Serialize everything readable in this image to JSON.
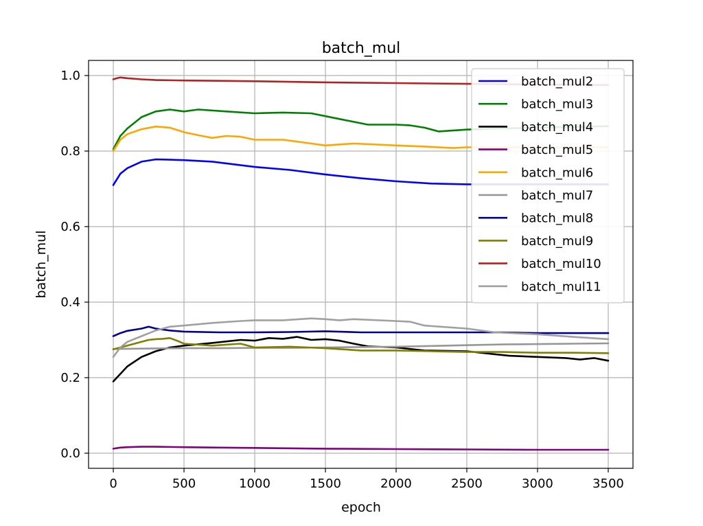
{
  "chart_data": {
    "type": "line",
    "title": "batch_mul",
    "xlabel": "epoch",
    "ylabel": "batch_mul",
    "xlim": [
      -175,
      3675
    ],
    "ylim": [
      -0.04,
      1.04
    ],
    "x_ticks": [
      0,
      500,
      1000,
      1500,
      2000,
      2500,
      3000,
      3500
    ],
    "y_ticks": [
      0.0,
      0.2,
      0.4,
      0.6,
      0.8,
      1.0
    ],
    "y_tick_labels": [
      "0.0",
      "0.2",
      "0.4",
      "0.6",
      "0.8",
      "1.0"
    ],
    "grid": true,
    "legend_position": "top-right",
    "series": [
      {
        "name": "batch_mul2",
        "color": "#0000ff",
        "x": [
          0,
          50,
          100,
          200,
          300,
          400,
          500,
          700,
          1000,
          1250,
          1500,
          1750,
          2000,
          2250,
          2500,
          2750,
          3000,
          3250,
          3500
        ],
        "y": [
          0.71,
          0.74,
          0.755,
          0.772,
          0.778,
          0.777,
          0.776,
          0.772,
          0.758,
          0.75,
          0.738,
          0.728,
          0.72,
          0.714,
          0.712,
          0.712,
          0.712,
          0.712,
          0.712
        ]
      },
      {
        "name": "batch_mul3",
        "color": "#008000",
        "x": [
          0,
          50,
          100,
          200,
          300,
          400,
          500,
          600,
          800,
          1000,
          1200,
          1400,
          1600,
          1800,
          2000,
          2100,
          2200,
          2300,
          2500,
          2750,
          3000,
          3250,
          3500
        ],
        "y": [
          0.805,
          0.84,
          0.86,
          0.89,
          0.905,
          0.91,
          0.905,
          0.91,
          0.905,
          0.9,
          0.902,
          0.9,
          0.885,
          0.87,
          0.87,
          0.868,
          0.862,
          0.852,
          0.857,
          0.86,
          0.862,
          0.864,
          0.866
        ]
      },
      {
        "name": "batch_mul4",
        "color": "#000000",
        "x": [
          0,
          50,
          100,
          200,
          300,
          400,
          500,
          700,
          900,
          1000,
          1100,
          1200,
          1300,
          1400,
          1500,
          1600,
          1700,
          1800,
          2000,
          2200,
          2500,
          2700,
          2800,
          3000,
          3200,
          3300,
          3400,
          3500
        ],
        "y": [
          0.19,
          0.21,
          0.23,
          0.255,
          0.27,
          0.28,
          0.285,
          0.292,
          0.3,
          0.298,
          0.305,
          0.303,
          0.308,
          0.3,
          0.302,
          0.298,
          0.29,
          0.283,
          0.28,
          0.272,
          0.27,
          0.262,
          0.258,
          0.255,
          0.252,
          0.248,
          0.252,
          0.245
        ]
      },
      {
        "name": "batch_mul5",
        "color": "#800080",
        "x": [
          0,
          50,
          100,
          200,
          300,
          500,
          750,
          1000,
          1500,
          2000,
          2500,
          3000,
          3500
        ],
        "y": [
          0.012,
          0.015,
          0.016,
          0.017,
          0.017,
          0.016,
          0.015,
          0.014,
          0.012,
          0.011,
          0.01,
          0.009,
          0.009
        ]
      },
      {
        "name": "batch_mul6",
        "color": "#ffa500",
        "x": [
          0,
          50,
          100,
          200,
          300,
          400,
          500,
          600,
          700,
          800,
          900,
          1000,
          1200,
          1400,
          1500,
          1700,
          2000,
          2200,
          2400,
          2500,
          2750,
          3000,
          3250,
          3500
        ],
        "y": [
          0.8,
          0.83,
          0.845,
          0.858,
          0.865,
          0.862,
          0.85,
          0.842,
          0.835,
          0.84,
          0.838,
          0.83,
          0.83,
          0.82,
          0.815,
          0.82,
          0.815,
          0.812,
          0.808,
          0.81,
          0.81,
          0.81,
          0.81,
          0.81
        ]
      },
      {
        "name": "batch_mul7",
        "color": "#969696",
        "x": [
          0,
          250,
          500,
          750,
          1000,
          1250,
          1500,
          1750,
          2000,
          2250,
          2500,
          2750,
          3000,
          3250,
          3500
        ],
        "y": [
          0.276,
          0.277,
          0.278,
          0.278,
          0.279,
          0.279,
          0.28,
          0.281,
          0.282,
          0.284,
          0.286,
          0.288,
          0.289,
          0.29,
          0.291
        ]
      },
      {
        "name": "batch_mul8",
        "color": "#00008b",
        "x": [
          0,
          50,
          100,
          200,
          250,
          300,
          400,
          500,
          750,
          1000,
          1250,
          1500,
          1750,
          2000,
          2250,
          2500,
          2750,
          3000,
          3250,
          3500
        ],
        "y": [
          0.31,
          0.318,
          0.324,
          0.33,
          0.335,
          0.33,
          0.325,
          0.322,
          0.32,
          0.32,
          0.321,
          0.323,
          0.32,
          0.32,
          0.32,
          0.32,
          0.32,
          0.318,
          0.318,
          0.318
        ]
      },
      {
        "name": "batch_mul9",
        "color": "#808000",
        "x": [
          0,
          100,
          200,
          250,
          300,
          350,
          400,
          450,
          500,
          700,
          900,
          1000,
          1250,
          1500,
          1750,
          2000,
          2250,
          2500,
          2750,
          3000,
          3250,
          3500
        ],
        "y": [
          0.275,
          0.285,
          0.295,
          0.3,
          0.302,
          0.303,
          0.305,
          0.298,
          0.29,
          0.285,
          0.29,
          0.28,
          0.282,
          0.278,
          0.272,
          0.272,
          0.27,
          0.268,
          0.268,
          0.266,
          0.266,
          0.265
        ]
      },
      {
        "name": "batch_mul10",
        "color": "#b22222",
        "x": [
          0,
          25,
          50,
          100,
          200,
          300,
          500,
          750,
          1000,
          1500,
          2000,
          2500,
          3000,
          3500
        ],
        "y": [
          0.99,
          0.993,
          0.995,
          0.993,
          0.99,
          0.988,
          0.987,
          0.986,
          0.985,
          0.982,
          0.98,
          0.978,
          0.976,
          0.975
        ]
      },
      {
        "name": "batch_mul11",
        "color": "#a0a0a0",
        "x": [
          0,
          50,
          100,
          200,
          300,
          400,
          500,
          700,
          900,
          1000,
          1200,
          1400,
          1500,
          1600,
          1700,
          2000,
          2100,
          2200,
          2500,
          2700,
          3000,
          3250,
          3500
        ],
        "y": [
          0.255,
          0.28,
          0.295,
          0.31,
          0.325,
          0.335,
          0.338,
          0.345,
          0.35,
          0.352,
          0.352,
          0.357,
          0.355,
          0.352,
          0.355,
          0.35,
          0.348,
          0.338,
          0.33,
          0.32,
          0.315,
          0.308,
          0.302
        ]
      }
    ]
  }
}
